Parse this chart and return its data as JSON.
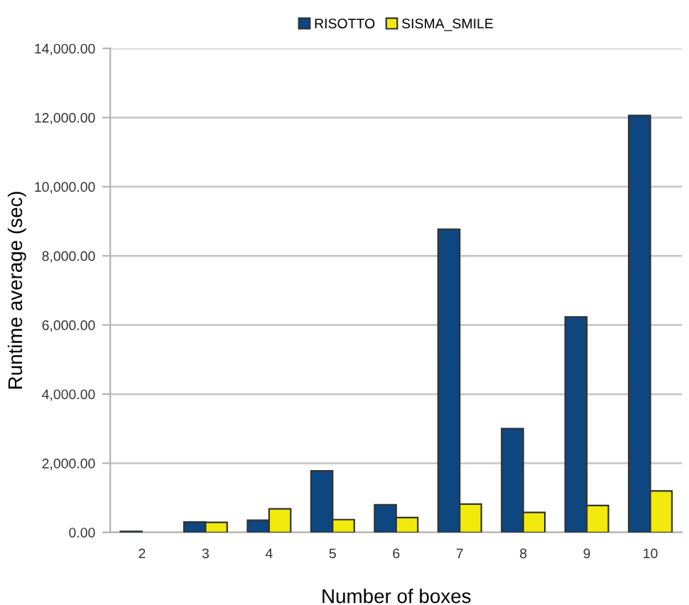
{
  "chart_data": {
    "type": "bar",
    "xlabel": "Number of boxes",
    "ylabel": "Runtime average (sec)",
    "categories": [
      "2",
      "3",
      "4",
      "5",
      "6",
      "7",
      "8",
      "9",
      "10"
    ],
    "series": [
      {
        "name": "RISOTTO",
        "color": "#0e4680",
        "values": [
          30,
          300,
          350,
          1780,
          800,
          8770,
          3000,
          6230,
          12060
        ]
      },
      {
        "name": "SISMA_SMILE",
        "color": "#f2ea0c",
        "values": [
          null,
          290,
          680,
          370,
          430,
          820,
          580,
          780,
          1200
        ]
      }
    ],
    "ylim": [
      0,
      14000
    ],
    "yticks": [
      {
        "value": 0,
        "label": "0.00"
      },
      {
        "value": 2000,
        "label": "2,000.00"
      },
      {
        "value": 4000,
        "label": "4,000.00"
      },
      {
        "value": 6000,
        "label": "6,000.00"
      },
      {
        "value": 8000,
        "label": "8,000.00"
      },
      {
        "value": 10000,
        "label": "10,000.00"
      },
      {
        "value": 12000,
        "label": "12,000.00"
      },
      {
        "value": 14000,
        "label": "14,000.00"
      }
    ],
    "grid": "y",
    "legend": "top"
  }
}
